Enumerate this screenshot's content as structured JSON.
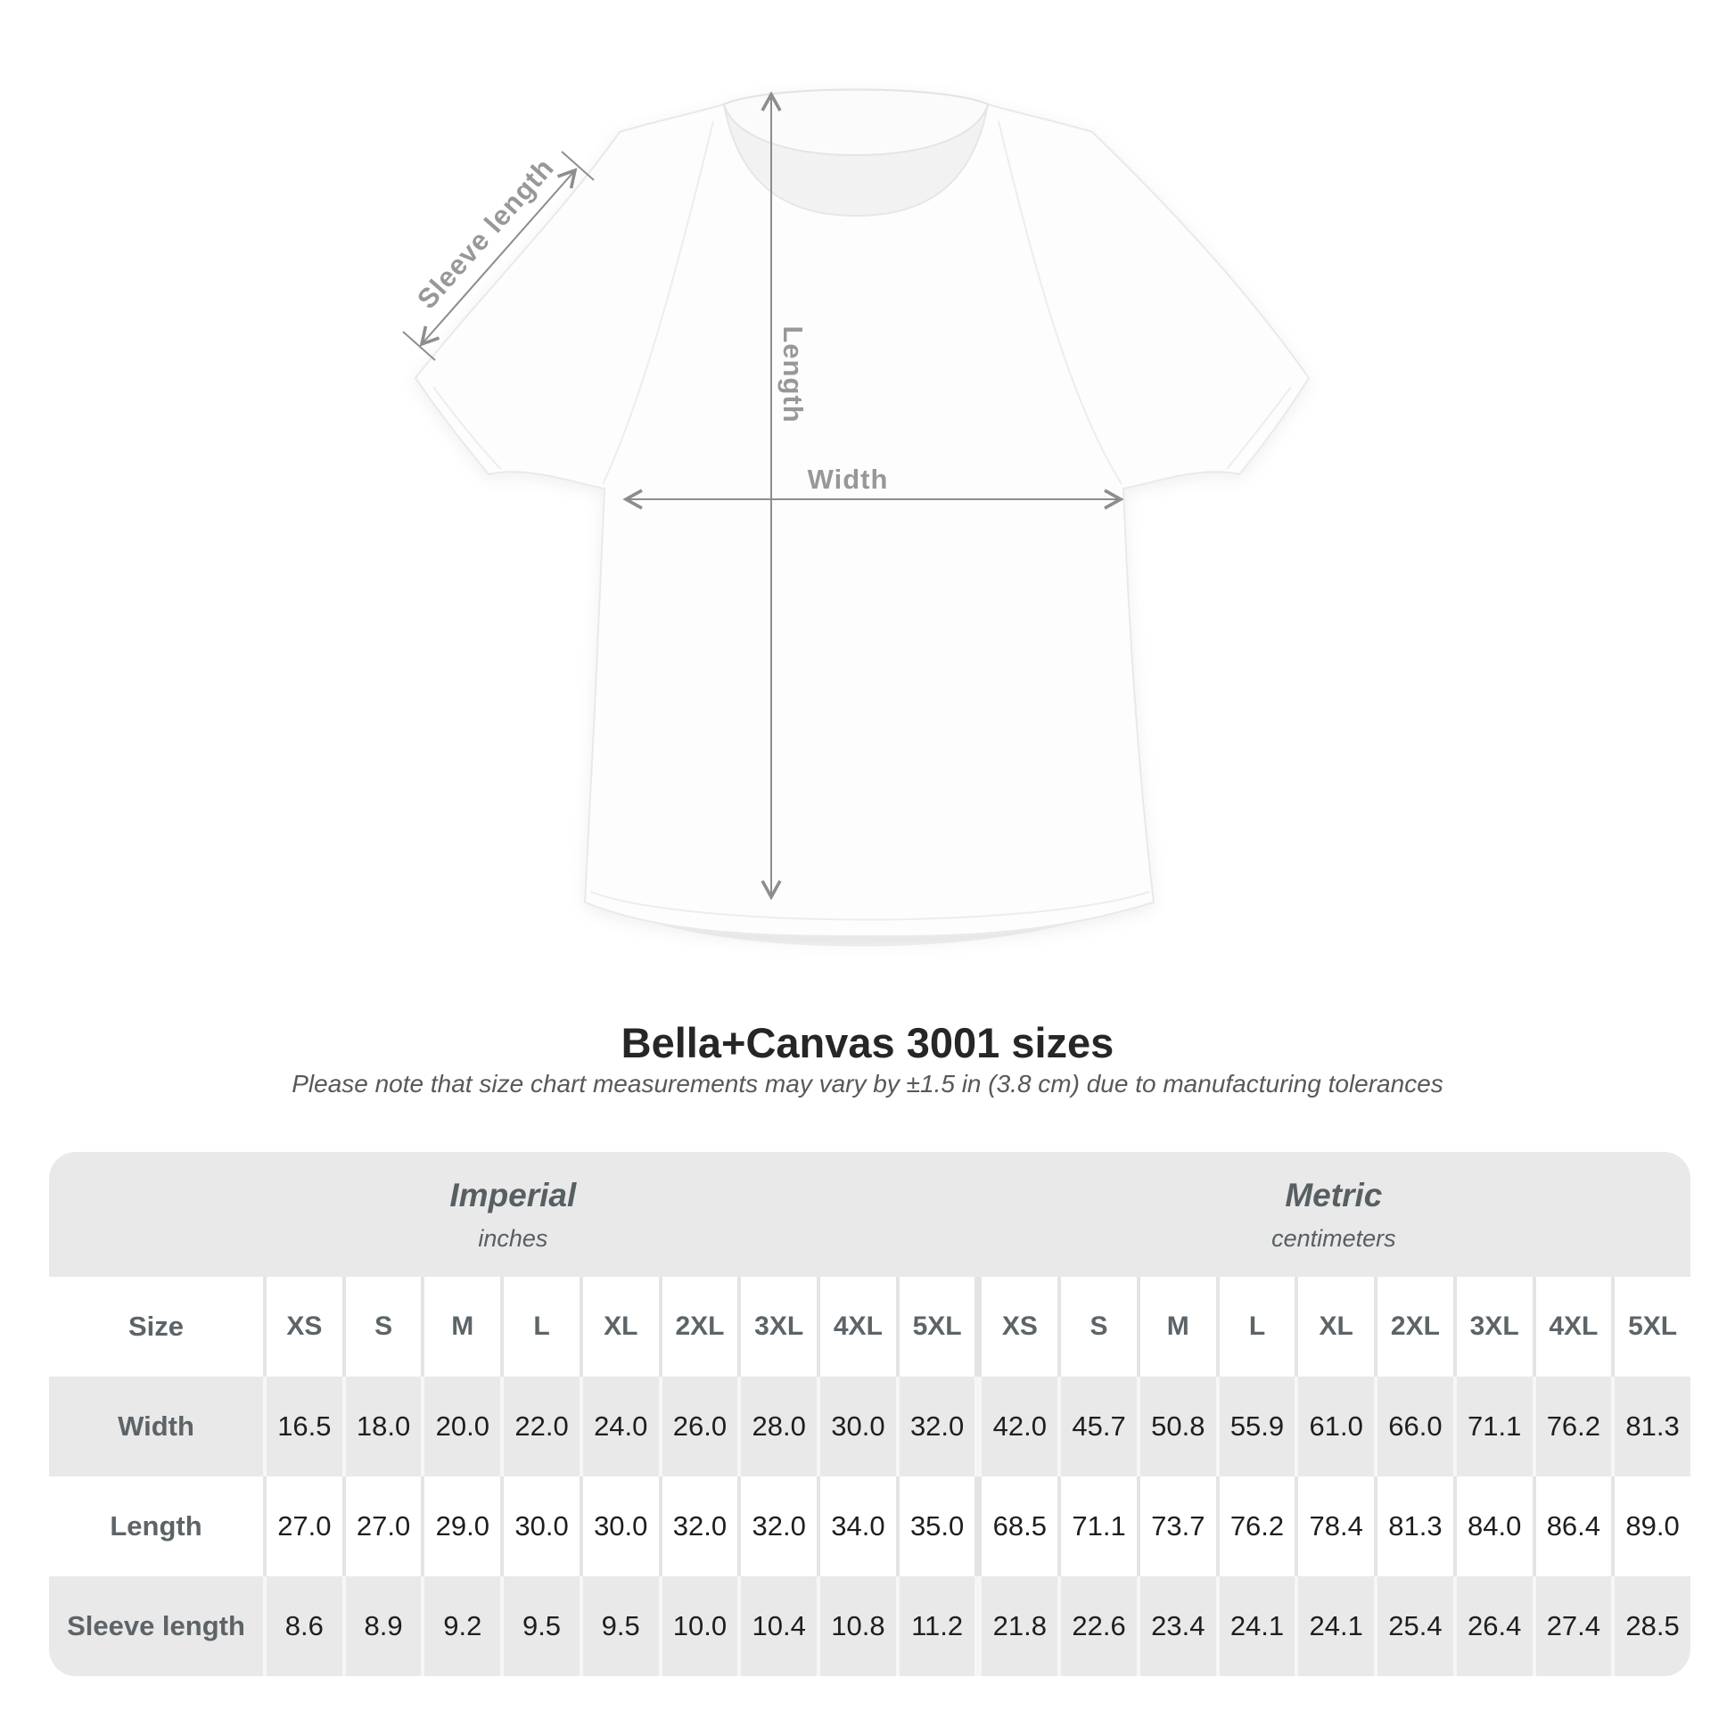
{
  "title": "Bella+Canvas 3001 sizes",
  "subtitle": "Please note that size chart measurements may vary by ±1.5 in (3.8 cm) due to manufacturing tolerances",
  "diagram": {
    "sleeve_length_label": "Sleeve length",
    "length_label": "Length",
    "width_label": "Width"
  },
  "table": {
    "size_label": "Size",
    "imperial": {
      "label": "Imperial",
      "unit": "inches"
    },
    "metric": {
      "label": "Metric",
      "unit": "centimeters"
    },
    "sizes": [
      "XS",
      "S",
      "M",
      "L",
      "XL",
      "2XL",
      "3XL",
      "4XL",
      "5XL"
    ],
    "rows": [
      {
        "label": "Width",
        "imperial": [
          "16.5",
          "18.0",
          "20.0",
          "22.0",
          "24.0",
          "26.0",
          "28.0",
          "30.0",
          "32.0"
        ],
        "metric": [
          "42.0",
          "45.7",
          "50.8",
          "55.9",
          "61.0",
          "66.0",
          "71.1",
          "76.2",
          "81.3"
        ]
      },
      {
        "label": "Length",
        "imperial": [
          "27.0",
          "27.0",
          "29.0",
          "30.0",
          "30.0",
          "32.0",
          "32.0",
          "34.0",
          "35.0"
        ],
        "metric": [
          "68.5",
          "71.1",
          "73.7",
          "76.2",
          "78.4",
          "81.3",
          "84.0",
          "86.4",
          "89.0"
        ]
      },
      {
        "label": "Sleeve length",
        "imperial": [
          "8.6",
          "8.9",
          "9.2",
          "9.5",
          "9.5",
          "10.0",
          "10.4",
          "10.8",
          "11.2"
        ],
        "metric": [
          "21.8",
          "22.6",
          "23.4",
          "24.1",
          "24.1",
          "25.4",
          "26.4",
          "27.4",
          "28.5"
        ]
      }
    ]
  },
  "colors": {
    "table_gray": "#e9e9e9",
    "header_text": "#5d6468",
    "value_text": "#1e1e1e",
    "dimension_line": "#8d8d8d",
    "diagram_label": "#96989a",
    "title_text": "#262626"
  },
  "chart_data": {
    "type": "table",
    "title": "Bella+Canvas 3001 sizes",
    "note": "Please note that size chart measurements may vary by ±1.5 in (3.8 cm) due to manufacturing tolerances",
    "column_groups": [
      {
        "label": "Imperial",
        "unit": "inches"
      },
      {
        "label": "Metric",
        "unit": "centimeters"
      }
    ],
    "columns": [
      "XS",
      "S",
      "M",
      "L",
      "XL",
      "2XL",
      "3XL",
      "4XL",
      "5XL"
    ],
    "rows": [
      {
        "label": "Width",
        "imperial_in": [
          16.5,
          18.0,
          20.0,
          22.0,
          24.0,
          26.0,
          28.0,
          30.0,
          32.0
        ],
        "metric_cm": [
          42.0,
          45.7,
          50.8,
          55.9,
          61.0,
          66.0,
          71.1,
          76.2,
          81.3
        ]
      },
      {
        "label": "Length",
        "imperial_in": [
          27.0,
          27.0,
          29.0,
          30.0,
          30.0,
          32.0,
          32.0,
          34.0,
          35.0
        ],
        "metric_cm": [
          68.5,
          71.1,
          73.7,
          76.2,
          78.4,
          81.3,
          84.0,
          86.4,
          89.0
        ]
      },
      {
        "label": "Sleeve length",
        "imperial_in": [
          8.6,
          8.9,
          9.2,
          9.5,
          9.5,
          10.0,
          10.4,
          10.8,
          11.2
        ],
        "metric_cm": [
          21.8,
          22.6,
          23.4,
          24.1,
          24.1,
          25.4,
          26.4,
          27.4,
          28.5
        ]
      }
    ]
  }
}
